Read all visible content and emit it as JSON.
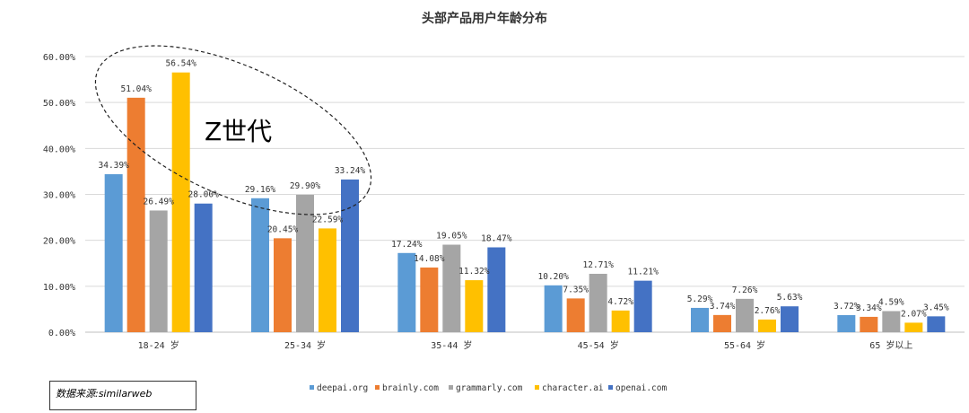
{
  "chart_data": {
    "type": "bar",
    "title": "头部产品用户年龄分布",
    "categories": [
      "18-24 岁",
      "25-34 岁",
      "35-44 岁",
      "45-54 岁",
      "55-64 岁",
      "65 岁以上"
    ],
    "series": [
      {
        "name": "deepai.org",
        "color": "#5B9BD5",
        "values": [
          34.39,
          29.16,
          17.24,
          10.2,
          5.29,
          3.72
        ],
        "labels": [
          "34.39%",
          "29.16%",
          "17.24%",
          "10.20%",
          "5.29%",
          "3.72%"
        ]
      },
      {
        "name": "brainly.com",
        "color": "#ED7D31",
        "values": [
          51.04,
          20.45,
          14.08,
          7.35,
          3.74,
          3.34
        ],
        "labels": [
          "51.04%",
          "20.45%",
          "14.08%",
          "7.35%",
          "3.74%",
          "3.34%"
        ]
      },
      {
        "name": "grammarly.com",
        "color": "#A5A5A5",
        "values": [
          26.49,
          29.9,
          19.05,
          12.71,
          7.26,
          4.59
        ],
        "labels": [
          "26.49%",
          "29.90%",
          "19.05%",
          "12.71%",
          "7.26%",
          "4.59%"
        ]
      },
      {
        "name": "character.ai",
        "color": "#FFC000",
        "values": [
          56.54,
          22.59,
          11.32,
          4.72,
          2.76,
          2.07
        ],
        "labels": [
          "56.54%",
          "22.59%",
          "11.32%",
          "4.72%",
          "2.76%",
          "2.07%"
        ]
      },
      {
        "name": "openai.com",
        "color": "#4472C4",
        "values": [
          28.0,
          33.24,
          18.47,
          11.21,
          5.63,
          3.45
        ],
        "labels": [
          "28.00%",
          "33.24%",
          "18.47%",
          "11.21%",
          "5.63%",
          "3.45%"
        ]
      }
    ],
    "yticks": [
      "0.00%",
      "10.00%",
      "20.00%",
      "30.00%",
      "40.00%",
      "50.00%",
      "60.00%"
    ],
    "ylim": [
      0,
      60
    ],
    "grid": true,
    "legend_position": "bottom",
    "annotation": "Z世代"
  },
  "source_note": "数据来源:similarweb"
}
